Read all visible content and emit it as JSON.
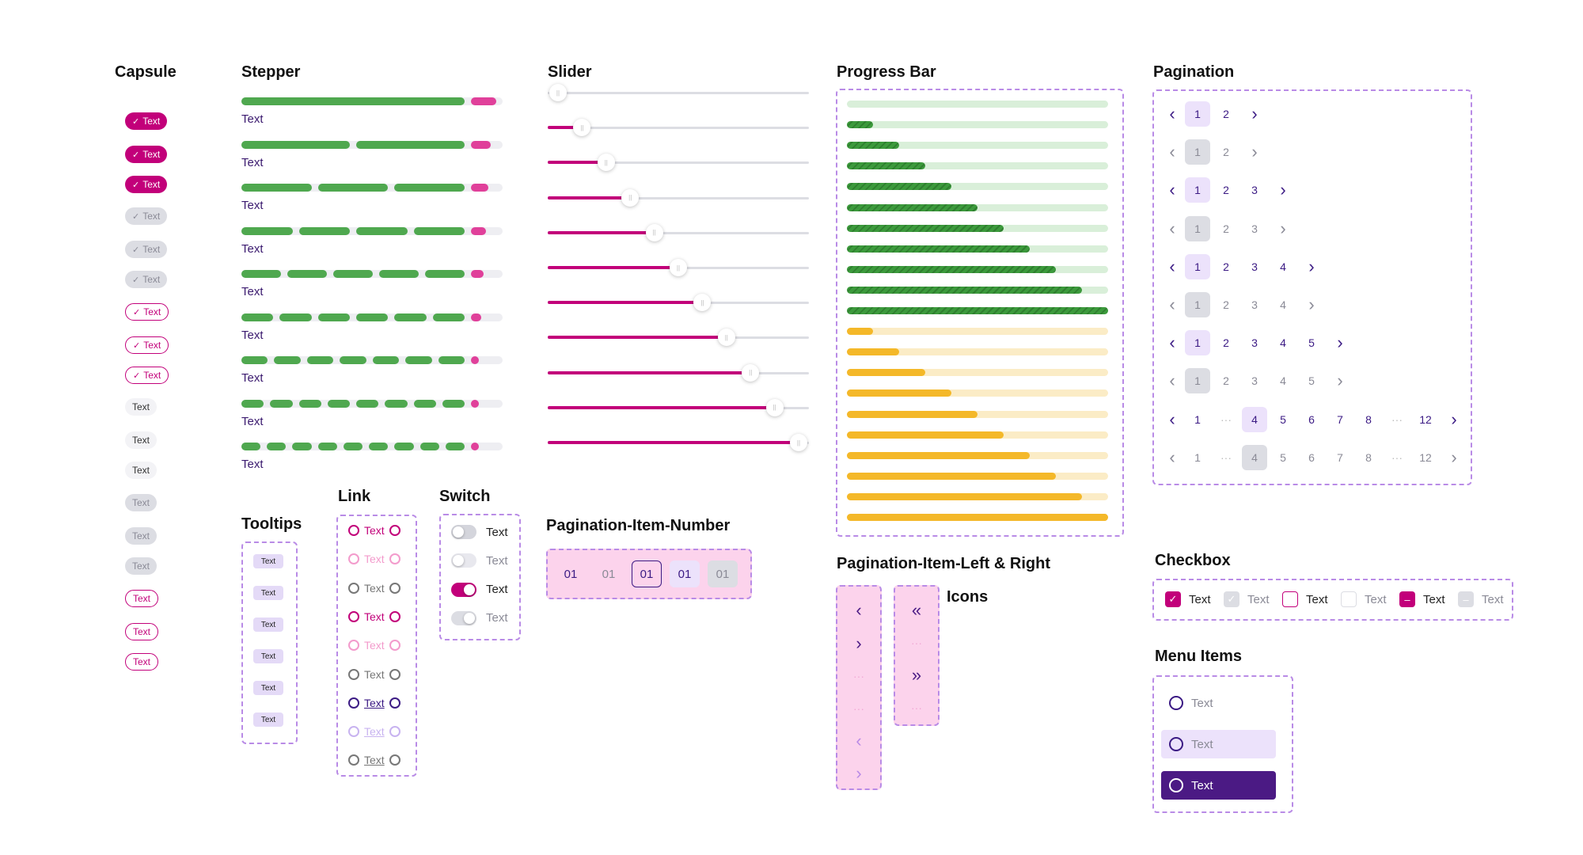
{
  "headings": {
    "capsule": "Capsule",
    "stepper": "Stepper",
    "slider": "Slider",
    "progress_bar": "Progress Bar",
    "pagination": "Pagination",
    "tooltips": "Tooltips",
    "link": "Link",
    "switch": "Switch",
    "pagination_item_number": "Pagination-Item-Number",
    "pagination_item_left_right": "Pagination-Item-Left & Right",
    "icons": "Icons",
    "checkbox": "Checkbox",
    "menu_items": "Menu Items"
  },
  "capsule": {
    "items": [
      {
        "label": "Text",
        "variant": "filled-pink",
        "icon": "check-icon"
      },
      {
        "label": "Text",
        "variant": "filled-pink",
        "icon": "check-icon"
      },
      {
        "label": "Text",
        "variant": "filled-pink",
        "icon": "check-icon"
      },
      {
        "label": "Text",
        "variant": "filled-gray",
        "icon": "check-icon"
      },
      {
        "label": "Text",
        "variant": "filled-gray",
        "icon": "check-icon"
      },
      {
        "label": "Text",
        "variant": "filled-gray",
        "icon": "check-icon"
      },
      {
        "label": "Text",
        "variant": "outline-pink",
        "icon": "check-icon"
      },
      {
        "label": "Text",
        "variant": "outline-pink",
        "icon": "check-icon"
      },
      {
        "label": "Text",
        "variant": "outline-pink",
        "icon": "check-icon"
      },
      {
        "label": "Text",
        "variant": "plain-light"
      },
      {
        "label": "Text",
        "variant": "plain-light"
      },
      {
        "label": "Text",
        "variant": "plain-light"
      },
      {
        "label": "Text",
        "variant": "plain-gray"
      },
      {
        "label": "Text",
        "variant": "plain-gray"
      },
      {
        "label": "Text",
        "variant": "plain-gray"
      },
      {
        "label": "Text",
        "variant": "outline-pink-plain"
      },
      {
        "label": "Text",
        "variant": "outline-pink-plain"
      },
      {
        "label": "Text",
        "variant": "outline-pink-plain"
      }
    ]
  },
  "stepper": {
    "label": "Text",
    "steps": [
      2,
      3,
      4,
      5,
      6,
      7,
      8,
      9,
      10
    ],
    "colors": {
      "done": "#4fa84f",
      "current": "#e0409a",
      "track": "#eeeef2"
    }
  },
  "slider": {
    "values": [
      0,
      0.1,
      0.2,
      0.3,
      0.4,
      0.5,
      0.6,
      0.7,
      0.8,
      0.9,
      1.0
    ],
    "colors": {
      "fill": "#c2007a",
      "track": "#dcdde3"
    }
  },
  "progress_bar": {
    "green": [
      0,
      0.1,
      0.2,
      0.3,
      0.4,
      0.5,
      0.6,
      0.7,
      0.8,
      0.9,
      1.0
    ],
    "yellow": [
      0.1,
      0.2,
      0.3,
      0.4,
      0.5,
      0.6,
      0.7,
      0.8,
      0.9,
      1.0
    ],
    "colors": {
      "green": "#3c9a3c",
      "green_track": "#d9efd9",
      "yellow": "#f4b829",
      "yellow_track": "#fbecc6"
    }
  },
  "pagination": {
    "prev_icon": "chevron-left-icon",
    "next_icon": "chevron-right-icon",
    "rows": [
      {
        "items": [
          "1",
          "2"
        ],
        "current": 0,
        "enabled": true
      },
      {
        "items": [
          "1",
          "2"
        ],
        "current": 0,
        "enabled": false
      },
      {
        "items": [
          "1",
          "2",
          "3"
        ],
        "current": 0,
        "enabled": true
      },
      {
        "items": [
          "1",
          "2",
          "3"
        ],
        "current": 0,
        "enabled": false
      },
      {
        "items": [
          "1",
          "2",
          "3",
          "4"
        ],
        "current": 0,
        "enabled": true
      },
      {
        "items": [
          "1",
          "2",
          "3",
          "4"
        ],
        "current": 0,
        "enabled": false
      },
      {
        "items": [
          "1",
          "2",
          "3",
          "4",
          "5"
        ],
        "current": 0,
        "enabled": true
      },
      {
        "items": [
          "1",
          "2",
          "3",
          "4",
          "5"
        ],
        "current": 0,
        "enabled": false
      },
      {
        "items": [
          "1",
          "···",
          "4",
          "5",
          "6",
          "7",
          "8",
          "···",
          "12"
        ],
        "current": 2,
        "enabled": true
      },
      {
        "items": [
          "1",
          "···",
          "4",
          "5",
          "6",
          "7",
          "8",
          "···",
          "12"
        ],
        "current": 2,
        "enabled": false
      }
    ]
  },
  "tooltips": {
    "items": [
      "Text",
      "Text",
      "Text",
      "Text",
      "Text",
      "Text"
    ]
  },
  "links": {
    "items": [
      {
        "label": "Text",
        "color": "#c2007a",
        "underline": false
      },
      {
        "label": "Text",
        "color": "#f39bcc",
        "underline": false
      },
      {
        "label": "Text",
        "color": "#777777",
        "underline": false
      },
      {
        "label": "Text",
        "color": "#c2007a",
        "underline": false
      },
      {
        "label": "Text",
        "color": "#f39bcc",
        "underline": false
      },
      {
        "label": "Text",
        "color": "#777777",
        "underline": false
      },
      {
        "label": "Text",
        "color": "#3b1a84",
        "underline": true
      },
      {
        "label": "Text",
        "color": "#c8b3f0",
        "underline": true
      },
      {
        "label": "Text",
        "color": "#777777",
        "underline": true
      }
    ]
  },
  "switches": {
    "items": [
      {
        "label": "Text",
        "on": false,
        "disabled": false
      },
      {
        "label": "Text",
        "on": false,
        "disabled": true
      },
      {
        "label": "Text",
        "on": true,
        "disabled": false
      },
      {
        "label": "Text",
        "on": true,
        "disabled": true
      }
    ]
  },
  "pagination_item_number": {
    "items": [
      {
        "label": "01",
        "state": "default"
      },
      {
        "label": "01",
        "state": "disabled"
      },
      {
        "label": "01",
        "state": "focused"
      },
      {
        "label": "01",
        "state": "hover"
      },
      {
        "label": "01",
        "state": "selected-disabled"
      }
    ]
  },
  "pagination_item_left_right": {
    "single": [
      "chevron-left-icon",
      "chevron-right-icon",
      "dots",
      "dots",
      "chevron-left-icon",
      "chevron-right-icon"
    ],
    "double": [
      "double-chevron-left-icon",
      "dots",
      "double-chevron-right-icon",
      "dots"
    ]
  },
  "checkbox": {
    "items": [
      {
        "label": "Text",
        "state": "checked"
      },
      {
        "label": "Text",
        "state": "checked-disabled"
      },
      {
        "label": "Text",
        "state": "unchecked"
      },
      {
        "label": "Text",
        "state": "unchecked-disabled"
      },
      {
        "label": "Text",
        "state": "indeterminate"
      },
      {
        "label": "Text",
        "state": "indeterminate-disabled"
      }
    ]
  },
  "menu_items": {
    "items": [
      {
        "label": "Text",
        "state": "default"
      },
      {
        "label": "Text",
        "state": "hover"
      },
      {
        "label": "Text",
        "state": "selected"
      }
    ]
  }
}
